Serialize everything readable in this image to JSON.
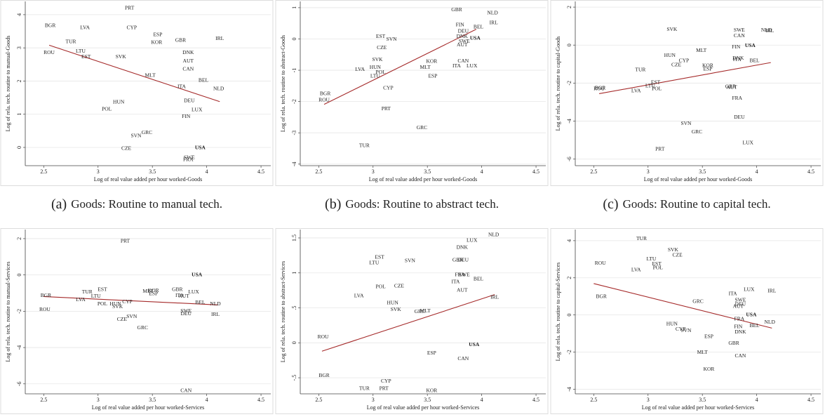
{
  "chart_data": [
    {
      "type": "scatter",
      "caption_label": "(a)",
      "caption": "Goods: Routine to manual tech.",
      "x_label": "Log of real value added per hour worked-Goods",
      "y_label": "Log of rela. tech. routine to manual-Goods",
      "xlim": [
        2.33,
        4.59
      ],
      "ylim": [
        -0.55,
        4.4
      ],
      "xticks": [
        2.5,
        3,
        3.5,
        4,
        4.5
      ],
      "yticks": [
        0,
        1,
        2,
        3,
        4
      ],
      "grid": true,
      "color": "#222222",
      "highlight": "USA",
      "highlight_color": "#b22222",
      "labels": [
        "PRT",
        "BGR",
        "LVA",
        "CYP",
        "ESP",
        "TUR",
        "KOR",
        "GBR",
        "IRL",
        "ROU",
        "LTU",
        "EST",
        "SVK",
        "DNK",
        "AUT",
        "CAN",
        "MLT",
        "BEL",
        "ITA",
        "NLD",
        "DEU",
        "HUN",
        "POL",
        "LUX",
        "FIN",
        "GRC",
        "SVN",
        "USA",
        "CZE",
        "SWE",
        "FRA"
      ],
      "x": [
        3.29,
        2.56,
        2.88,
        3.31,
        3.55,
        2.75,
        3.54,
        3.76,
        4.12,
        2.55,
        2.84,
        2.89,
        3.21,
        3.83,
        3.83,
        3.83,
        3.48,
        3.97,
        3.77,
        4.11,
        3.84,
        3.19,
        3.08,
        3.91,
        3.81,
        3.45,
        3.35,
        3.94,
        3.26,
        3.84,
        3.83
      ],
      "y": [
        4.19,
        3.66,
        3.6,
        3.6,
        3.39,
        3.18,
        3.16,
        3.22,
        3.27,
        2.85,
        2.89,
        2.72,
        2.72,
        2.85,
        2.6,
        2.35,
        2.16,
        2.01,
        1.82,
        1.76,
        1.4,
        1.36,
        1.15,
        1.13,
        0.92,
        0.44,
        0.34,
        -0.02,
        -0.04,
        -0.31,
        -0.38
      ],
      "fit": {
        "x": [
          2.55,
          4.12
        ],
        "y": [
          3.08,
          1.38
        ],
        "color": "#a52a2a"
      }
    },
    {
      "type": "scatter",
      "caption_label": "(b)",
      "caption": "Goods: Routine to abstract tech.",
      "x_label": "Log of real value added per hour worked-Goods",
      "y_label": "Log of rela. tech. routine to abstract-Goods",
      "xlim": [
        2.33,
        4.59
      ],
      "ylim": [
        -4.05,
        1.2
      ],
      "xticks": [
        2.5,
        3,
        3.5,
        4,
        4.5
      ],
      "yticks": [
        -4,
        -3,
        -2,
        -1,
        0,
        1
      ],
      "grid": true,
      "color": "#222222",
      "highlight": "USA",
      "highlight_color": "#b22222",
      "labels": [
        "GBR",
        "NLD",
        "IRL",
        "FIN",
        "BEL",
        "DEU",
        "EST",
        "DNK",
        "USA",
        "SVN",
        "SWE",
        "AUT",
        "CZE",
        "SVK",
        "KOR",
        "CAN",
        "HUN",
        "MLT",
        "ITA",
        "LUX",
        "LVA",
        "POL",
        "LTU",
        "ESP",
        "CYP",
        "BGR",
        "ROU",
        "PRT",
        "GRC",
        "TUR"
      ],
      "x": [
        3.77,
        4.1,
        4.11,
        3.8,
        3.97,
        3.83,
        3.07,
        3.82,
        3.94,
        3.17,
        3.84,
        3.82,
        3.08,
        3.04,
        3.54,
        3.83,
        3.02,
        3.48,
        3.77,
        3.91,
        2.88,
        3.07,
        3.02,
        3.55,
        3.14,
        2.56,
        2.55,
        3.12,
        3.45,
        2.92
      ],
      "y": [
        0.93,
        0.82,
        0.51,
        0.44,
        0.38,
        0.24,
        0.07,
        0.07,
        0.02,
        -0.02,
        -0.09,
        -0.2,
        -0.29,
        -0.67,
        -0.73,
        -0.71,
        -0.91,
        -0.91,
        -0.87,
        -0.87,
        -0.98,
        -1.07,
        -1.2,
        -1.2,
        -1.58,
        -1.76,
        -1.96,
        -2.24,
        -2.84,
        -3.42
      ],
      "fit": {
        "x": [
          2.55,
          3.95
        ],
        "y": [
          -2.09,
          0.31
        ],
        "color": "#a52a2a"
      }
    },
    {
      "type": "scatter",
      "caption_label": "(c)",
      "caption": "Goods: Routine to capital tech.",
      "x_label": "Log of real value added per hour worked-Goods",
      "y_label": "Log of rela. tech. routine to capital-Goods",
      "xlim": [
        2.33,
        4.59
      ],
      "ylim": [
        -6.35,
        2.3
      ],
      "xticks": [
        2.5,
        3,
        3.5,
        4,
        4.5
      ],
      "yticks": [
        -6,
        -4,
        -2,
        0,
        2
      ],
      "grid": true,
      "color": "#222222",
      "highlight": "USA",
      "highlight_color": "#b22222",
      "labels": [
        "SVK",
        "SWE",
        "NLD",
        "IRL",
        "CAN",
        "FIN",
        "USA",
        "MLT",
        "HUN",
        "DNK",
        "ITA",
        "CYP",
        "BEL",
        "CZE",
        "KOR",
        "ESP",
        "TUR",
        "EST",
        "BGR",
        "ROU",
        "LTU",
        "POL",
        "LVA",
        "GBR",
        "AUT",
        "FRA",
        "DEU",
        "SVN",
        "GRC",
        "LUX",
        "PRT"
      ],
      "x": [
        3.22,
        3.84,
        4.09,
        4.12,
        3.84,
        3.81,
        3.94,
        3.49,
        3.2,
        3.83,
        3.82,
        3.33,
        3.98,
        3.26,
        3.55,
        3.55,
        2.93,
        3.07,
        2.56,
        2.55,
        3.02,
        3.08,
        2.89,
        3.76,
        3.77,
        3.82,
        3.84,
        3.35,
        3.45,
        3.92,
        3.11
      ],
      "y": [
        0.81,
        0.77,
        0.77,
        0.73,
        0.48,
        -0.11,
        -0.04,
        -0.29,
        -0.55,
        -0.7,
        -0.77,
        -0.84,
        -0.84,
        -1.06,
        -1.1,
        -1.28,
        -1.32,
        -1.98,
        -2.27,
        -2.31,
        -2.16,
        -2.31,
        -2.42,
        -2.2,
        -2.23,
        -2.82,
        -3.81,
        -4.14,
        -4.58,
        -5.16,
        -5.49
      ],
      "fit": {
        "x": [
          2.55,
          4.13
        ],
        "y": [
          -2.56,
          -0.92
        ],
        "color": "#a52a2a"
      }
    },
    {
      "type": "scatter",
      "x_label": "Log of real value added per hour worked-Services",
      "y_label": "Log of rela. tech. routine to manual-Services",
      "xlim": [
        2.33,
        4.59
      ],
      "ylim": [
        -6.55,
        2.5
      ],
      "xticks": [
        2.5,
        3,
        3.5,
        4,
        4.5
      ],
      "yticks": [
        -6,
        -4,
        -2,
        0,
        2
      ],
      "grid": true,
      "color": "#222222",
      "highlight": "USA",
      "highlight_color": "#b22222",
      "labels": [
        "PRT",
        "USA",
        "BGR",
        "TUR",
        "EST",
        "MLT",
        "KOR",
        "GBR",
        "LUX",
        "ESP",
        "LTU",
        "ITA",
        "AUT",
        "LVA",
        "CYP",
        "POL",
        "HUN",
        "SVK",
        "BEL",
        "NLD",
        "ROU",
        "SWE",
        "DEU",
        "IRL",
        "SVN",
        "CZE",
        "GRC",
        "CAN"
      ],
      "x": [
        3.25,
        3.91,
        2.52,
        2.9,
        3.04,
        3.46,
        3.51,
        3.73,
        3.88,
        3.51,
        2.98,
        3.75,
        3.79,
        2.84,
        3.27,
        3.04,
        3.16,
        3.18,
        3.94,
        4.08,
        2.51,
        3.81,
        3.81,
        4.08,
        3.31,
        3.22,
        3.41,
        3.81
      ],
      "y": [
        1.85,
        0,
        -1.15,
        -0.96,
        -0.81,
        -0.92,
        -0.88,
        -0.81,
        -0.96,
        -1.04,
        -1.19,
        -1.15,
        -1.19,
        -1.38,
        -1.5,
        -1.62,
        -1.62,
        -1.77,
        -1.54,
        -1.62,
        -1.92,
        -2,
        -2.15,
        -2.19,
        -2.31,
        -2.46,
        -2.92,
        -6.38
      ],
      "fit": {
        "x": [
          2.5,
          4.1
        ],
        "y": [
          -1.19,
          -1.65
        ],
        "color": "#a52a2a"
      }
    },
    {
      "type": "scatter",
      "x_label": "Log of real value added per hour worked-Services",
      "y_label": "Log of rela. tech. routine to abstract-Services",
      "xlim": [
        2.33,
        4.59
      ],
      "ylim": [
        -0.73,
        1.62
      ],
      "xticks": [
        2.5,
        3,
        3.5,
        4,
        4.5
      ],
      "yticks": [
        {
          "value": -0.5,
          "label": "-.5"
        },
        0,
        {
          "value": 0.5,
          "label": ".5"
        },
        1,
        1.5
      ],
      "grid": true,
      "color": "#222222",
      "highlight": "USA",
      "highlight_color": "#b22222",
      "labels": [
        "NLD",
        "LUX",
        "DNK",
        "EST",
        "LTU",
        "SVN",
        "GBR",
        "DEU",
        "FRA",
        "SWE",
        "BEL",
        "ITA",
        "POL",
        "CZE",
        "AUT",
        "LVA",
        "IRL",
        "HUN",
        "SVK",
        "GRC",
        "MLT",
        "ROU",
        "USA",
        "ESP",
        "CAN",
        "BGR",
        "CYP",
        "TUR",
        "PRT",
        "KOR"
      ],
      "x": [
        4.11,
        3.91,
        3.82,
        3.06,
        3.01,
        3.34,
        3.78,
        3.83,
        3.8,
        3.84,
        3.97,
        3.76,
        3.07,
        3.24,
        3.82,
        2.87,
        4.12,
        3.18,
        3.21,
        3.43,
        3.48,
        2.54,
        3.93,
        3.54,
        3.83,
        2.55,
        3.12,
        2.92,
        3.1,
        3.54
      ],
      "y": [
        1.54,
        1.46,
        1.36,
        1.22,
        1.14,
        1.17,
        1.18,
        1.18,
        0.97,
        0.97,
        0.91,
        0.87,
        0.8,
        0.81,
        0.75,
        0.67,
        0.65,
        0.57,
        0.47,
        0.44,
        0.45,
        0.08,
        -0.03,
        -0.15,
        -0.23,
        -0.47,
        -0.55,
        -0.66,
        -0.66,
        -0.69
      ],
      "fit": {
        "x": [
          2.53,
          4.12
        ],
        "y": [
          -0.12,
          0.69
        ],
        "color": "#a52a2a"
      }
    },
    {
      "type": "scatter",
      "x_label": "Log of real value added per hour worked-Services",
      "y_label": "Log of rela. tech. routine to capital-Services",
      "xlim": [
        2.33,
        4.59
      ],
      "ylim": [
        -4.25,
        4.6
      ],
      "xticks": [
        2.5,
        3,
        3.5,
        4,
        4.5
      ],
      "yticks": [
        -4,
        -2,
        0,
        2,
        4
      ],
      "grid": true,
      "color": "#222222",
      "highlight": "USA",
      "highlight_color": "#b22222",
      "labels": [
        "TUR",
        "SVK",
        "CZE",
        "LTU",
        "EST",
        "ROU",
        "POL",
        "LVA",
        "LUX",
        "IRL",
        "ITA",
        "BGR",
        "SWE",
        "GRC",
        "DEU",
        "AUT",
        "USA",
        "FRA",
        "NLD",
        "BEL",
        "FIN",
        "HUN",
        "CYP",
        "SVN",
        "DNK",
        "ESP",
        "GBR",
        "MLT",
        "CAN",
        "KOR"
      ],
      "x": [
        2.94,
        3.23,
        3.27,
        3.03,
        3.08,
        2.56,
        3.09,
        2.89,
        3.93,
        4.14,
        3.78,
        2.57,
        3.85,
        3.46,
        3.85,
        3.83,
        3.95,
        3.84,
        4.12,
        3.98,
        3.83,
        3.22,
        3.3,
        3.35,
        3.85,
        3.56,
        3.79,
        3.5,
        3.85,
        3.56
      ],
      "y": [
        4.1,
        3.5,
        3.2,
        3.01,
        2.74,
        2.78,
        2.52,
        2.41,
        1.35,
        1.28,
        1.13,
        0.98,
        0.79,
        0.71,
        0.56,
        0.45,
        0,
        -0.23,
        -0.41,
        -0.6,
        -0.64,
        -0.49,
        -0.79,
        -0.86,
        -0.94,
        -1.17,
        -1.54,
        -2.03,
        -2.22,
        -2.93
      ],
      "fit": {
        "x": [
          2.5,
          4.14
        ],
        "y": [
          1.69,
          -0.71
        ],
        "color": "#a52a2a"
      }
    }
  ]
}
